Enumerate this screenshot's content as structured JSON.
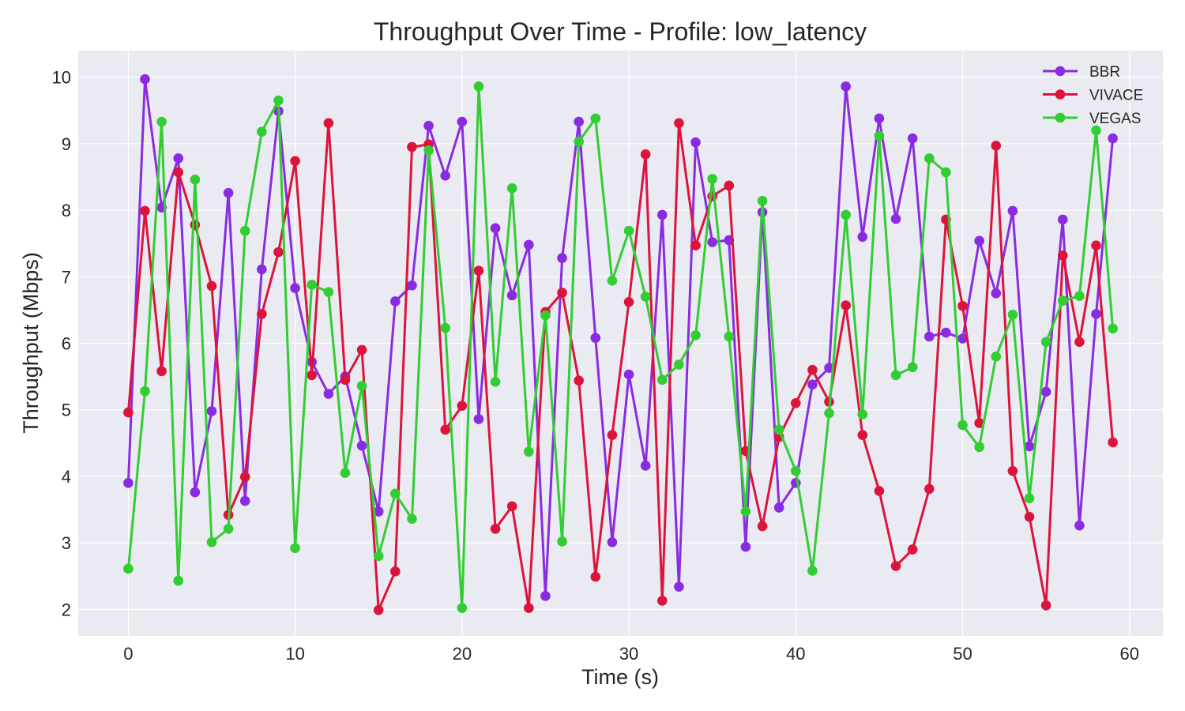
{
  "chart_data": {
    "type": "line",
    "title": "Throughput Over Time - Profile: low_latency",
    "xlabel": "Time (s)",
    "ylabel": "Throughput (Mbps)",
    "xlim": [
      -3,
      62
    ],
    "ylim": [
      1.6,
      10.4
    ],
    "xticks": [
      0,
      10,
      20,
      30,
      40,
      50,
      60
    ],
    "yticks": [
      2,
      3,
      4,
      5,
      6,
      7,
      8,
      9,
      10
    ],
    "grid": true,
    "legend_position": "upper right",
    "x": [
      0,
      1,
      2,
      3,
      4,
      5,
      6,
      7,
      8,
      9,
      10,
      11,
      12,
      13,
      14,
      15,
      16,
      17,
      18,
      19,
      20,
      21,
      22,
      23,
      24,
      25,
      26,
      27,
      28,
      29,
      30,
      31,
      32,
      33,
      34,
      35,
      36,
      37,
      38,
      39,
      40,
      41,
      42,
      43,
      44,
      45,
      46,
      47,
      48,
      49,
      50,
      51,
      52,
      53,
      54,
      55,
      56,
      57,
      58,
      59
    ],
    "series": [
      {
        "name": "BBR",
        "color": "#8a2be2",
        "values": [
          3.9,
          9.97,
          8.04,
          8.78,
          3.76,
          4.98,
          8.26,
          3.63,
          7.11,
          9.49,
          6.83,
          5.72,
          5.24,
          5.5,
          4.46,
          3.47,
          6.63,
          6.87,
          9.27,
          8.52,
          9.33,
          4.86,
          7.73,
          6.72,
          7.48,
          2.2,
          7.28,
          9.33,
          6.08,
          3.01,
          5.53,
          4.16,
          7.93,
          2.34,
          9.02,
          7.52,
          7.55,
          2.94,
          7.97,
          3.53,
          3.9,
          5.38,
          5.63,
          9.86,
          7.6,
          9.38,
          7.87,
          9.08,
          6.1,
          6.16,
          6.07,
          7.54,
          6.75,
          7.99,
          4.45,
          5.27,
          7.86,
          3.26,
          6.44,
          9.08
        ]
      },
      {
        "name": "VIVACE",
        "color": "#dc143c",
        "values": [
          4.96,
          7.99,
          5.58,
          8.57,
          7.78,
          6.86,
          3.42,
          3.99,
          6.44,
          7.37,
          8.74,
          5.52,
          9.31,
          5.45,
          5.9,
          1.99,
          2.57,
          8.95,
          8.99,
          4.7,
          5.06,
          7.09,
          3.21,
          3.55,
          2.02,
          6.47,
          6.76,
          5.44,
          2.49,
          4.62,
          6.62,
          8.84,
          2.13,
          9.31,
          7.47,
          8.21,
          8.37,
          4.38,
          3.25,
          4.59,
          5.1,
          5.6,
          5.12,
          6.57,
          4.62,
          3.78,
          2.65,
          2.9,
          3.81,
          7.86,
          6.56,
          4.8,
          8.97,
          4.08,
          3.39,
          2.06,
          7.32,
          6.02,
          7.47,
          4.51
        ]
      },
      {
        "name": "VEGAS",
        "color": "#32cd32",
        "values": [
          2.61,
          5.28,
          9.33,
          2.43,
          8.46,
          3.01,
          3.21,
          7.69,
          9.18,
          9.65,
          2.92,
          6.88,
          6.77,
          4.05,
          5.36,
          2.8,
          3.74,
          3.36,
          8.9,
          6.23,
          2.02,
          9.86,
          5.42,
          8.33,
          4.37,
          6.42,
          3.02,
          9.03,
          9.38,
          6.94,
          7.69,
          6.7,
          5.45,
          5.68,
          6.12,
          8.47,
          6.1,
          3.47,
          8.14,
          4.7,
          4.08,
          2.58,
          4.95,
          7.93,
          4.93,
          9.12,
          5.52,
          5.64,
          8.78,
          8.57,
          4.77,
          4.44,
          5.8,
          6.43,
          3.67,
          6.02,
          6.64,
          6.71,
          9.2,
          6.22
        ]
      }
    ]
  }
}
